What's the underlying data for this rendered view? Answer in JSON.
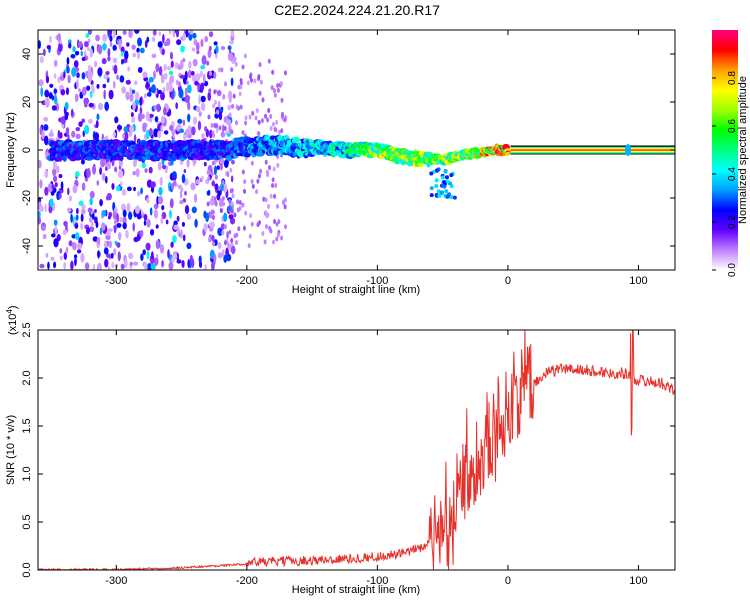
{
  "title": "C2E2.2024.224.21.20.R17",
  "chart_data": [
    {
      "type": "heatmap",
      "xlabel": "Height of straight line (km)",
      "ylabel": "Frequency (Hz)",
      "xlim": [
        -360,
        128
      ],
      "ylim": [
        -50,
        50
      ],
      "xticks": [
        -300,
        -200,
        -100,
        0,
        100
      ],
      "yticks": [
        -40,
        -20,
        0,
        20,
        40
      ],
      "colorbar": {
        "label": "Normalized spectral amplitude",
        "range": [
          0.0,
          1.0
        ],
        "ticks": [
          0.0,
          0.2,
          0.4,
          0.6,
          0.8
        ],
        "tick_labels": [
          "0.0",
          "0.2",
          "0.4",
          "0.6",
          "0.8"
        ],
        "colormap": [
          "#ffffff",
          "#c080ff",
          "#6000ff",
          "#0000ff",
          "#00a0ff",
          "#00ffff",
          "#00ff80",
          "#00ff00",
          "#a0ff00",
          "#ffff00",
          "#ffa000",
          "#ff0000",
          "#ff0080"
        ]
      },
      "ridge": {
        "x": [
          -210,
          -180,
          -150,
          -120,
          -100,
          -80,
          -60,
          -50,
          -40,
          -30,
          -20,
          -10,
          0,
          130
        ],
        "freq": [
          1,
          2,
          1,
          0,
          0,
          -3,
          -4,
          -4,
          -3,
          -2,
          -1,
          0,
          0,
          0
        ],
        "amplitude": [
          0.35,
          0.4,
          0.45,
          0.55,
          0.7,
          0.75,
          0.72,
          0.7,
          0.75,
          0.8,
          0.85,
          0.95,
          0.95,
          0.95
        ]
      },
      "noise_region": {
        "x": [
          -360,
          -210
        ],
        "freq": [
          -50,
          50
        ],
        "amplitude": [
          0.05,
          0.3
        ]
      },
      "spike": {
        "x": 92,
        "freq": 0
      }
    },
    {
      "type": "line",
      "xlabel": "Height of straight line (km)",
      "ylabel": "SNR (10 * v/v)",
      "yscale_label": "(x10",
      "yscale_exponent": "4",
      "xlim": [
        -360,
        128
      ],
      "ylim": [
        0.0,
        2.5
      ],
      "xticks": [
        -300,
        -200,
        -100,
        0,
        100
      ],
      "yticks": [
        0.0,
        0.5,
        1.0,
        1.5,
        2.0,
        2.5
      ],
      "ytick_labels": [
        "0.0",
        "0.5",
        "1.0",
        "1.5",
        "2.0",
        "2.5"
      ],
      "color": "#e8302a",
      "series": [
        {
          "x": [
            -360,
            -300,
            -250,
            -210,
            -200,
            -150,
            -120,
            -100,
            -80,
            -70,
            -60,
            -55,
            -50,
            -45,
            -40,
            -35,
            -30,
            -25,
            -20,
            -15,
            -10,
            -5,
            0,
            10,
            20,
            30,
            40,
            60,
            80,
            90,
            95,
            100,
            110,
            120,
            128
          ],
          "values": [
            0.0,
            0.0,
            0.02,
            0.05,
            0.06,
            0.08,
            0.1,
            0.12,
            0.15,
            0.2,
            0.25,
            0.3,
            0.45,
            0.55,
            0.7,
            0.85,
            1.0,
            1.1,
            1.2,
            1.3,
            1.4,
            1.5,
            1.65,
            1.8,
            1.95,
            2.05,
            2.1,
            2.08,
            2.05,
            2.05,
            2.0,
            1.98,
            1.96,
            1.94,
            1.85
          ]
        }
      ]
    }
  ]
}
